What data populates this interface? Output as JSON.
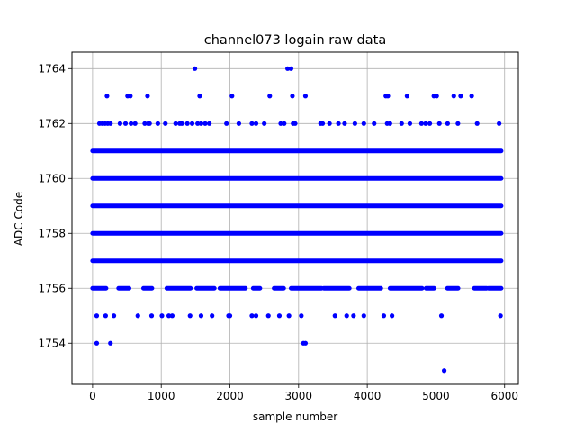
{
  "chart_data": {
    "type": "scatter",
    "title": "channel073 logain raw data",
    "xlabel": "sample number",
    "ylabel": "ADC Code",
    "xlim": [
      -300,
      6200
    ],
    "ylim": [
      1752.5,
      1764.6
    ],
    "xticks": [
      0,
      1000,
      2000,
      3000,
      4000,
      5000,
      6000
    ],
    "yticks": [
      1754,
      1756,
      1758,
      1760,
      1762,
      1764
    ],
    "grid": true,
    "marker": "circle",
    "color": "#0000ff",
    "dense_levels": [
      {
        "y": 1756,
        "x_range": [
          0,
          5950
        ],
        "density": 0.55
      },
      {
        "y": 1757,
        "x_range": [
          0,
          5950
        ],
        "density": 1.0
      },
      {
        "y": 1758,
        "x_range": [
          0,
          5950
        ],
        "density": 1.0
      },
      {
        "y": 1759,
        "x_range": [
          0,
          5950
        ],
        "density": 1.0
      },
      {
        "y": 1760,
        "x_range": [
          0,
          5950
        ],
        "density": 1.0
      },
      {
        "y": 1761,
        "x_range": [
          0,
          5950
        ],
        "density": 1.0
      }
    ],
    "points": [
      {
        "x": 1490,
        "y": 1764
      },
      {
        "x": 2840,
        "y": 1764
      },
      {
        "x": 2890,
        "y": 1764
      },
      {
        "x": 210,
        "y": 1763
      },
      {
        "x": 510,
        "y": 1763
      },
      {
        "x": 550,
        "y": 1763
      },
      {
        "x": 800,
        "y": 1763
      },
      {
        "x": 1560,
        "y": 1763
      },
      {
        "x": 2030,
        "y": 1763
      },
      {
        "x": 2580,
        "y": 1763
      },
      {
        "x": 2910,
        "y": 1763
      },
      {
        "x": 3100,
        "y": 1763
      },
      {
        "x": 4270,
        "y": 1763
      },
      {
        "x": 4300,
        "y": 1763
      },
      {
        "x": 4580,
        "y": 1763
      },
      {
        "x": 4970,
        "y": 1763
      },
      {
        "x": 5010,
        "y": 1763
      },
      {
        "x": 5260,
        "y": 1763
      },
      {
        "x": 5360,
        "y": 1763
      },
      {
        "x": 5520,
        "y": 1763
      },
      {
        "x": 100,
        "y": 1762
      },
      {
        "x": 140,
        "y": 1762
      },
      {
        "x": 180,
        "y": 1762
      },
      {
        "x": 220,
        "y": 1762
      },
      {
        "x": 260,
        "y": 1762
      },
      {
        "x": 400,
        "y": 1762
      },
      {
        "x": 480,
        "y": 1762
      },
      {
        "x": 560,
        "y": 1762
      },
      {
        "x": 620,
        "y": 1762
      },
      {
        "x": 760,
        "y": 1762
      },
      {
        "x": 810,
        "y": 1762
      },
      {
        "x": 830,
        "y": 1762
      },
      {
        "x": 950,
        "y": 1762
      },
      {
        "x": 1060,
        "y": 1762
      },
      {
        "x": 1210,
        "y": 1762
      },
      {
        "x": 1270,
        "y": 1762
      },
      {
        "x": 1300,
        "y": 1762
      },
      {
        "x": 1380,
        "y": 1762
      },
      {
        "x": 1450,
        "y": 1762
      },
      {
        "x": 1530,
        "y": 1762
      },
      {
        "x": 1580,
        "y": 1762
      },
      {
        "x": 1640,
        "y": 1762
      },
      {
        "x": 1700,
        "y": 1762
      },
      {
        "x": 1950,
        "y": 1762
      },
      {
        "x": 2130,
        "y": 1762
      },
      {
        "x": 2320,
        "y": 1762
      },
      {
        "x": 2380,
        "y": 1762
      },
      {
        "x": 2500,
        "y": 1762
      },
      {
        "x": 2740,
        "y": 1762
      },
      {
        "x": 2790,
        "y": 1762
      },
      {
        "x": 2920,
        "y": 1762
      },
      {
        "x": 2950,
        "y": 1762
      },
      {
        "x": 3320,
        "y": 1762
      },
      {
        "x": 3350,
        "y": 1762
      },
      {
        "x": 3450,
        "y": 1762
      },
      {
        "x": 3580,
        "y": 1762
      },
      {
        "x": 3670,
        "y": 1762
      },
      {
        "x": 3820,
        "y": 1762
      },
      {
        "x": 3950,
        "y": 1762
      },
      {
        "x": 4100,
        "y": 1762
      },
      {
        "x": 4290,
        "y": 1762
      },
      {
        "x": 4330,
        "y": 1762
      },
      {
        "x": 4500,
        "y": 1762
      },
      {
        "x": 4620,
        "y": 1762
      },
      {
        "x": 4790,
        "y": 1762
      },
      {
        "x": 4850,
        "y": 1762
      },
      {
        "x": 4910,
        "y": 1762
      },
      {
        "x": 5050,
        "y": 1762
      },
      {
        "x": 5170,
        "y": 1762
      },
      {
        "x": 5320,
        "y": 1762
      },
      {
        "x": 5600,
        "y": 1762
      },
      {
        "x": 5920,
        "y": 1762
      },
      {
        "x": 60,
        "y": 1755
      },
      {
        "x": 190,
        "y": 1755
      },
      {
        "x": 310,
        "y": 1755
      },
      {
        "x": 660,
        "y": 1755
      },
      {
        "x": 860,
        "y": 1755
      },
      {
        "x": 1010,
        "y": 1755
      },
      {
        "x": 1110,
        "y": 1755
      },
      {
        "x": 1160,
        "y": 1755
      },
      {
        "x": 1420,
        "y": 1755
      },
      {
        "x": 1580,
        "y": 1755
      },
      {
        "x": 1740,
        "y": 1755
      },
      {
        "x": 1980,
        "y": 1755
      },
      {
        "x": 2000,
        "y": 1755
      },
      {
        "x": 2320,
        "y": 1755
      },
      {
        "x": 2380,
        "y": 1755
      },
      {
        "x": 2560,
        "y": 1755
      },
      {
        "x": 2720,
        "y": 1755
      },
      {
        "x": 2860,
        "y": 1755
      },
      {
        "x": 3040,
        "y": 1755
      },
      {
        "x": 3530,
        "y": 1755
      },
      {
        "x": 3700,
        "y": 1755
      },
      {
        "x": 3800,
        "y": 1755
      },
      {
        "x": 3950,
        "y": 1755
      },
      {
        "x": 4240,
        "y": 1755
      },
      {
        "x": 4360,
        "y": 1755
      },
      {
        "x": 5080,
        "y": 1755
      },
      {
        "x": 5940,
        "y": 1755
      },
      {
        "x": 60,
        "y": 1754
      },
      {
        "x": 260,
        "y": 1754
      },
      {
        "x": 3070,
        "y": 1754
      },
      {
        "x": 3100,
        "y": 1754
      },
      {
        "x": 5120,
        "y": 1753
      }
    ]
  }
}
